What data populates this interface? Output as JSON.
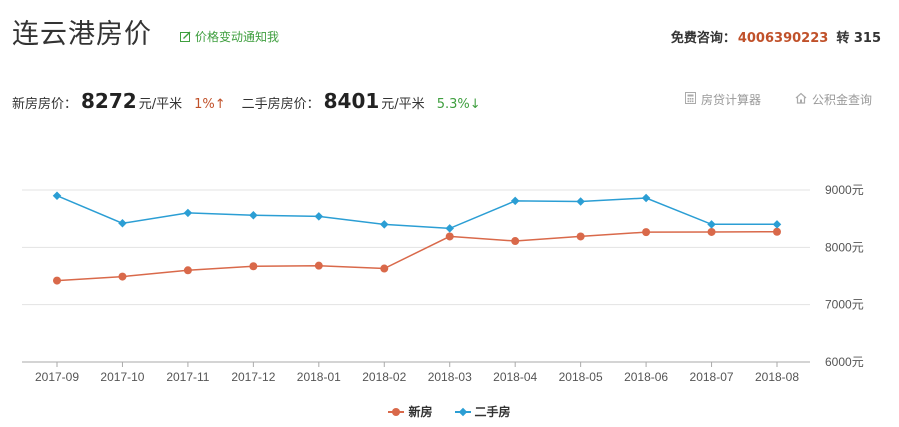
{
  "header": {
    "title": "连云港房价",
    "notify_label": "价格变动通知我",
    "consult_label": "免费咨询：",
    "consult_phone": "4006390223",
    "consult_ext_label": "转",
    "consult_ext": "315"
  },
  "prices": {
    "new_label": "新房房价：",
    "new_value": "8272",
    "new_unit": "元/平米",
    "new_change": "1%↑",
    "second_label": "二手房房价：",
    "second_value": "8401",
    "second_unit": "元/平米",
    "second_change": "5.3%↓"
  },
  "tools": {
    "calculator": "房贷计算器",
    "fund": "公积金查询"
  },
  "colors": {
    "new_series": "#d9694a",
    "second_series": "#2b9ed4",
    "up": "#c0512a",
    "down": "#3f9f3f"
  },
  "icons": {
    "notify": "edit-box-icon",
    "calculator": "calculator-icon",
    "fund": "house-icon"
  },
  "chart_data": {
    "type": "line",
    "categories": [
      "2017-09",
      "2017-10",
      "2017-11",
      "2017-12",
      "2018-01",
      "2018-02",
      "2018-03",
      "2018-04",
      "2018-05",
      "2018-06",
      "2018-07",
      "2018-08"
    ],
    "series": [
      {
        "name": "新房",
        "values": [
          7420,
          7490,
          7600,
          7670,
          7680,
          7630,
          8190,
          8110,
          8190,
          8265,
          8268,
          8272
        ]
      },
      {
        "name": "二手房",
        "values": [
          8900,
          8420,
          8600,
          8560,
          8540,
          8400,
          8330,
          8810,
          8800,
          8860,
          8401,
          8401
        ]
      }
    ],
    "y_ticks": [
      "6000元",
      "7000元",
      "8000元",
      "9000元"
    ],
    "ylim": [
      6000,
      9000
    ],
    "y_axis_side": "right",
    "grid": true,
    "legend_position": "bottom-center"
  }
}
